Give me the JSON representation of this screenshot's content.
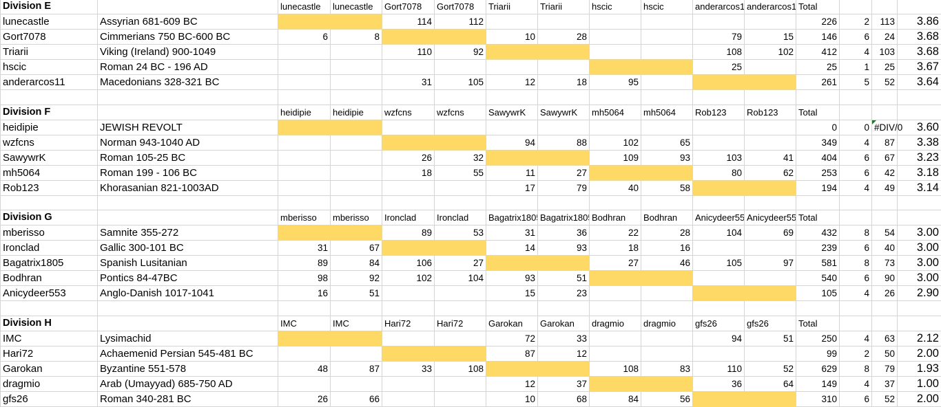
{
  "theme": {
    "highlight": "#ffd966",
    "grid": "#d4d4d4",
    "error_marker": "#1a7f1a"
  },
  "divisions": [
    {
      "title": "Division E",
      "columns": [
        "lunecastle",
        "lunecastle",
        "Gort7078",
        "Gort7078",
        "Triarii",
        "Triarii",
        "hscic",
        "hscic",
        "anderarcos11",
        "anderarcos11"
      ],
      "total_label": "Total",
      "rows": [
        {
          "player": "lunecastle",
          "army": "Assyrian 681-609 BC",
          "cells": [
            "",
            "",
            "114",
            "112",
            "",
            "",
            "",
            "",
            "",
            ""
          ],
          "total": "226",
          "games": "2",
          "avg": "113",
          "score": "3.86"
        },
        {
          "player": "Gort7078",
          "army": "Cimmerians 750 BC-600 BC",
          "cells": [
            "6",
            "8",
            "",
            "",
            "10",
            "28",
            "",
            "",
            "79",
            "15"
          ],
          "total": "146",
          "games": "6",
          "avg": "24",
          "score": "3.68"
        },
        {
          "player": "Triarii",
          "army": "Viking (Ireland) 900-1049",
          "cells": [
            "",
            "",
            "110",
            "92",
            "",
            "",
            "",
            "",
            "108",
            "102"
          ],
          "total": "412",
          "games": "4",
          "avg": "103",
          "score": "3.68"
        },
        {
          "player": "hscic",
          "army": "Roman 24 BC - 196 AD",
          "cells": [
            "",
            "",
            "",
            "",
            "",
            "",
            "",
            "",
            "25",
            ""
          ],
          "total": "25",
          "games": "1",
          "avg": "25",
          "score": "3.67"
        },
        {
          "player": "anderarcos11",
          "army": "Macedonians 328-321 BC",
          "cells": [
            "",
            "",
            "31",
            "105",
            "12",
            "18",
            "95",
            "",
            "",
            ""
          ],
          "total": "261",
          "games": "5",
          "avg": "52",
          "score": "3.64"
        }
      ]
    },
    {
      "title": "Division F",
      "columns": [
        "heidipie",
        "heidipie",
        "wzfcns",
        "wzfcns",
        "SawywrK",
        "SawywrK",
        "mh5064",
        "mh5064",
        "Rob123",
        "Rob123"
      ],
      "total_label": "Total",
      "rows": [
        {
          "player": "heidipie",
          "army": "JEWISH REVOLT",
          "cells": [
            "",
            "",
            "",
            "",
            "",
            "",
            "",
            "",
            "",
            ""
          ],
          "total": "0",
          "games": "0",
          "avg": "#DIV/0",
          "score": "3.60"
        },
        {
          "player": "wzfcns",
          "army": "Norman 943-1040 AD",
          "cells": [
            "",
            "",
            "",
            "",
            "94",
            "88",
            "102",
            "65",
            "",
            ""
          ],
          "total": "349",
          "games": "4",
          "avg": "87",
          "score": "3.38"
        },
        {
          "player": "SawywrK",
          "army": "Roman 105-25 BC",
          "cells": [
            "",
            "",
            "26",
            "32",
            "",
            "",
            "109",
            "93",
            "103",
            "41"
          ],
          "total": "404",
          "games": "6",
          "avg": "67",
          "score": "3.23"
        },
        {
          "player": "mh5064",
          "army": "Roman 199 - 106 BC",
          "cells": [
            "",
            "",
            "18",
            "55",
            "11",
            "27",
            "",
            "",
            "80",
            "62"
          ],
          "total": "253",
          "games": "6",
          "avg": "42",
          "score": "3.18"
        },
        {
          "player": "Rob123",
          "army": "Khorasanian 821-1003AD",
          "cells": [
            "",
            "",
            "",
            "",
            "17",
            "79",
            "40",
            "58",
            "",
            ""
          ],
          "total": "194",
          "games": "4",
          "avg": "49",
          "score": "3.14"
        }
      ]
    },
    {
      "title": "Division G",
      "columns": [
        "mberisso",
        "mberisso",
        "Ironclad",
        "Ironclad",
        "Bagatrix1805",
        "Bagatrix1805",
        "Bodhran",
        "Bodhran",
        "Anicydeer553",
        "Anicydeer553"
      ],
      "total_label": "Total",
      "rows": [
        {
          "player": "mberisso",
          "army": "Samnite 355-272",
          "cells": [
            "",
            "",
            "89",
            "53",
            "31",
            "36",
            "22",
            "28",
            "104",
            "69"
          ],
          "total": "432",
          "games": "8",
          "avg": "54",
          "score": "3.00"
        },
        {
          "player": "Ironclad",
          "army": "Gallic 300-101 BC",
          "cells": [
            "31",
            "67",
            "",
            "",
            "14",
            "93",
            "18",
            "16",
            "",
            ""
          ],
          "total": "239",
          "games": "6",
          "avg": "40",
          "score": "3.00"
        },
        {
          "player": "Bagatrix1805",
          "army": "Spanish Lusitanian",
          "cells": [
            "89",
            "84",
            "106",
            "27",
            "",
            "",
            "27",
            "46",
            "105",
            "97"
          ],
          "total": "581",
          "games": "8",
          "avg": "73",
          "score": "3.00"
        },
        {
          "player": "Bodhran",
          "army": "Pontics 84-47BC",
          "cells": [
            "98",
            "92",
            "102",
            "104",
            "93",
            "51",
            "",
            "",
            "",
            ""
          ],
          "total": "540",
          "games": "6",
          "avg": "90",
          "score": "3.00"
        },
        {
          "player": "Anicydeer553",
          "army": "Anglo-Danish 1017-1041",
          "cells": [
            "16",
            "51",
            "",
            "",
            "15",
            "23",
            "",
            "",
            "",
            ""
          ],
          "total": "105",
          "games": "4",
          "avg": "26",
          "score": "2.90"
        }
      ]
    },
    {
      "title": "Division H",
      "columns": [
        "IMC",
        "IMC",
        "Hari72",
        "Hari72",
        "Garokan",
        "Garokan",
        "dragmio",
        "dragmio",
        "gfs26",
        "gfs26"
      ],
      "total_label": "Total",
      "rows": [
        {
          "player": "IMC",
          "army": "Lysimachid",
          "cells": [
            "",
            "",
            "",
            "",
            "72",
            "33",
            "",
            "",
            "94",
            "51"
          ],
          "total": "250",
          "games": "4",
          "avg": "63",
          "score": "2.12"
        },
        {
          "player": "Hari72",
          "army": "Achaemenid Persian 545-481 BC",
          "cells": [
            "",
            "",
            "",
            "",
            "87",
            "12",
            "",
            "",
            "",
            ""
          ],
          "total": "99",
          "games": "2",
          "avg": "50",
          "score": "2.00"
        },
        {
          "player": "Garokan",
          "army": "Byzantine 551-578",
          "cells": [
            "48",
            "87",
            "33",
            "108",
            "",
            "",
            "108",
            "83",
            "110",
            "52"
          ],
          "total": "629",
          "games": "8",
          "avg": "79",
          "score": "1.93"
        },
        {
          "player": "dragmio",
          "army": "Arab (Umayyad) 685-750 AD",
          "cells": [
            "",
            "",
            "",
            "",
            "12",
            "37",
            "",
            "",
            "36",
            "64"
          ],
          "total": "149",
          "games": "4",
          "avg": "37",
          "score": "1.00"
        },
        {
          "player": "gfs26",
          "army": "Roman 340-281 BC",
          "cells": [
            "26",
            "66",
            "",
            "",
            "10",
            "68",
            "84",
            "56",
            "",
            ""
          ],
          "total": "310",
          "games": "6",
          "avg": "52",
          "score": "2.00"
        }
      ]
    }
  ]
}
